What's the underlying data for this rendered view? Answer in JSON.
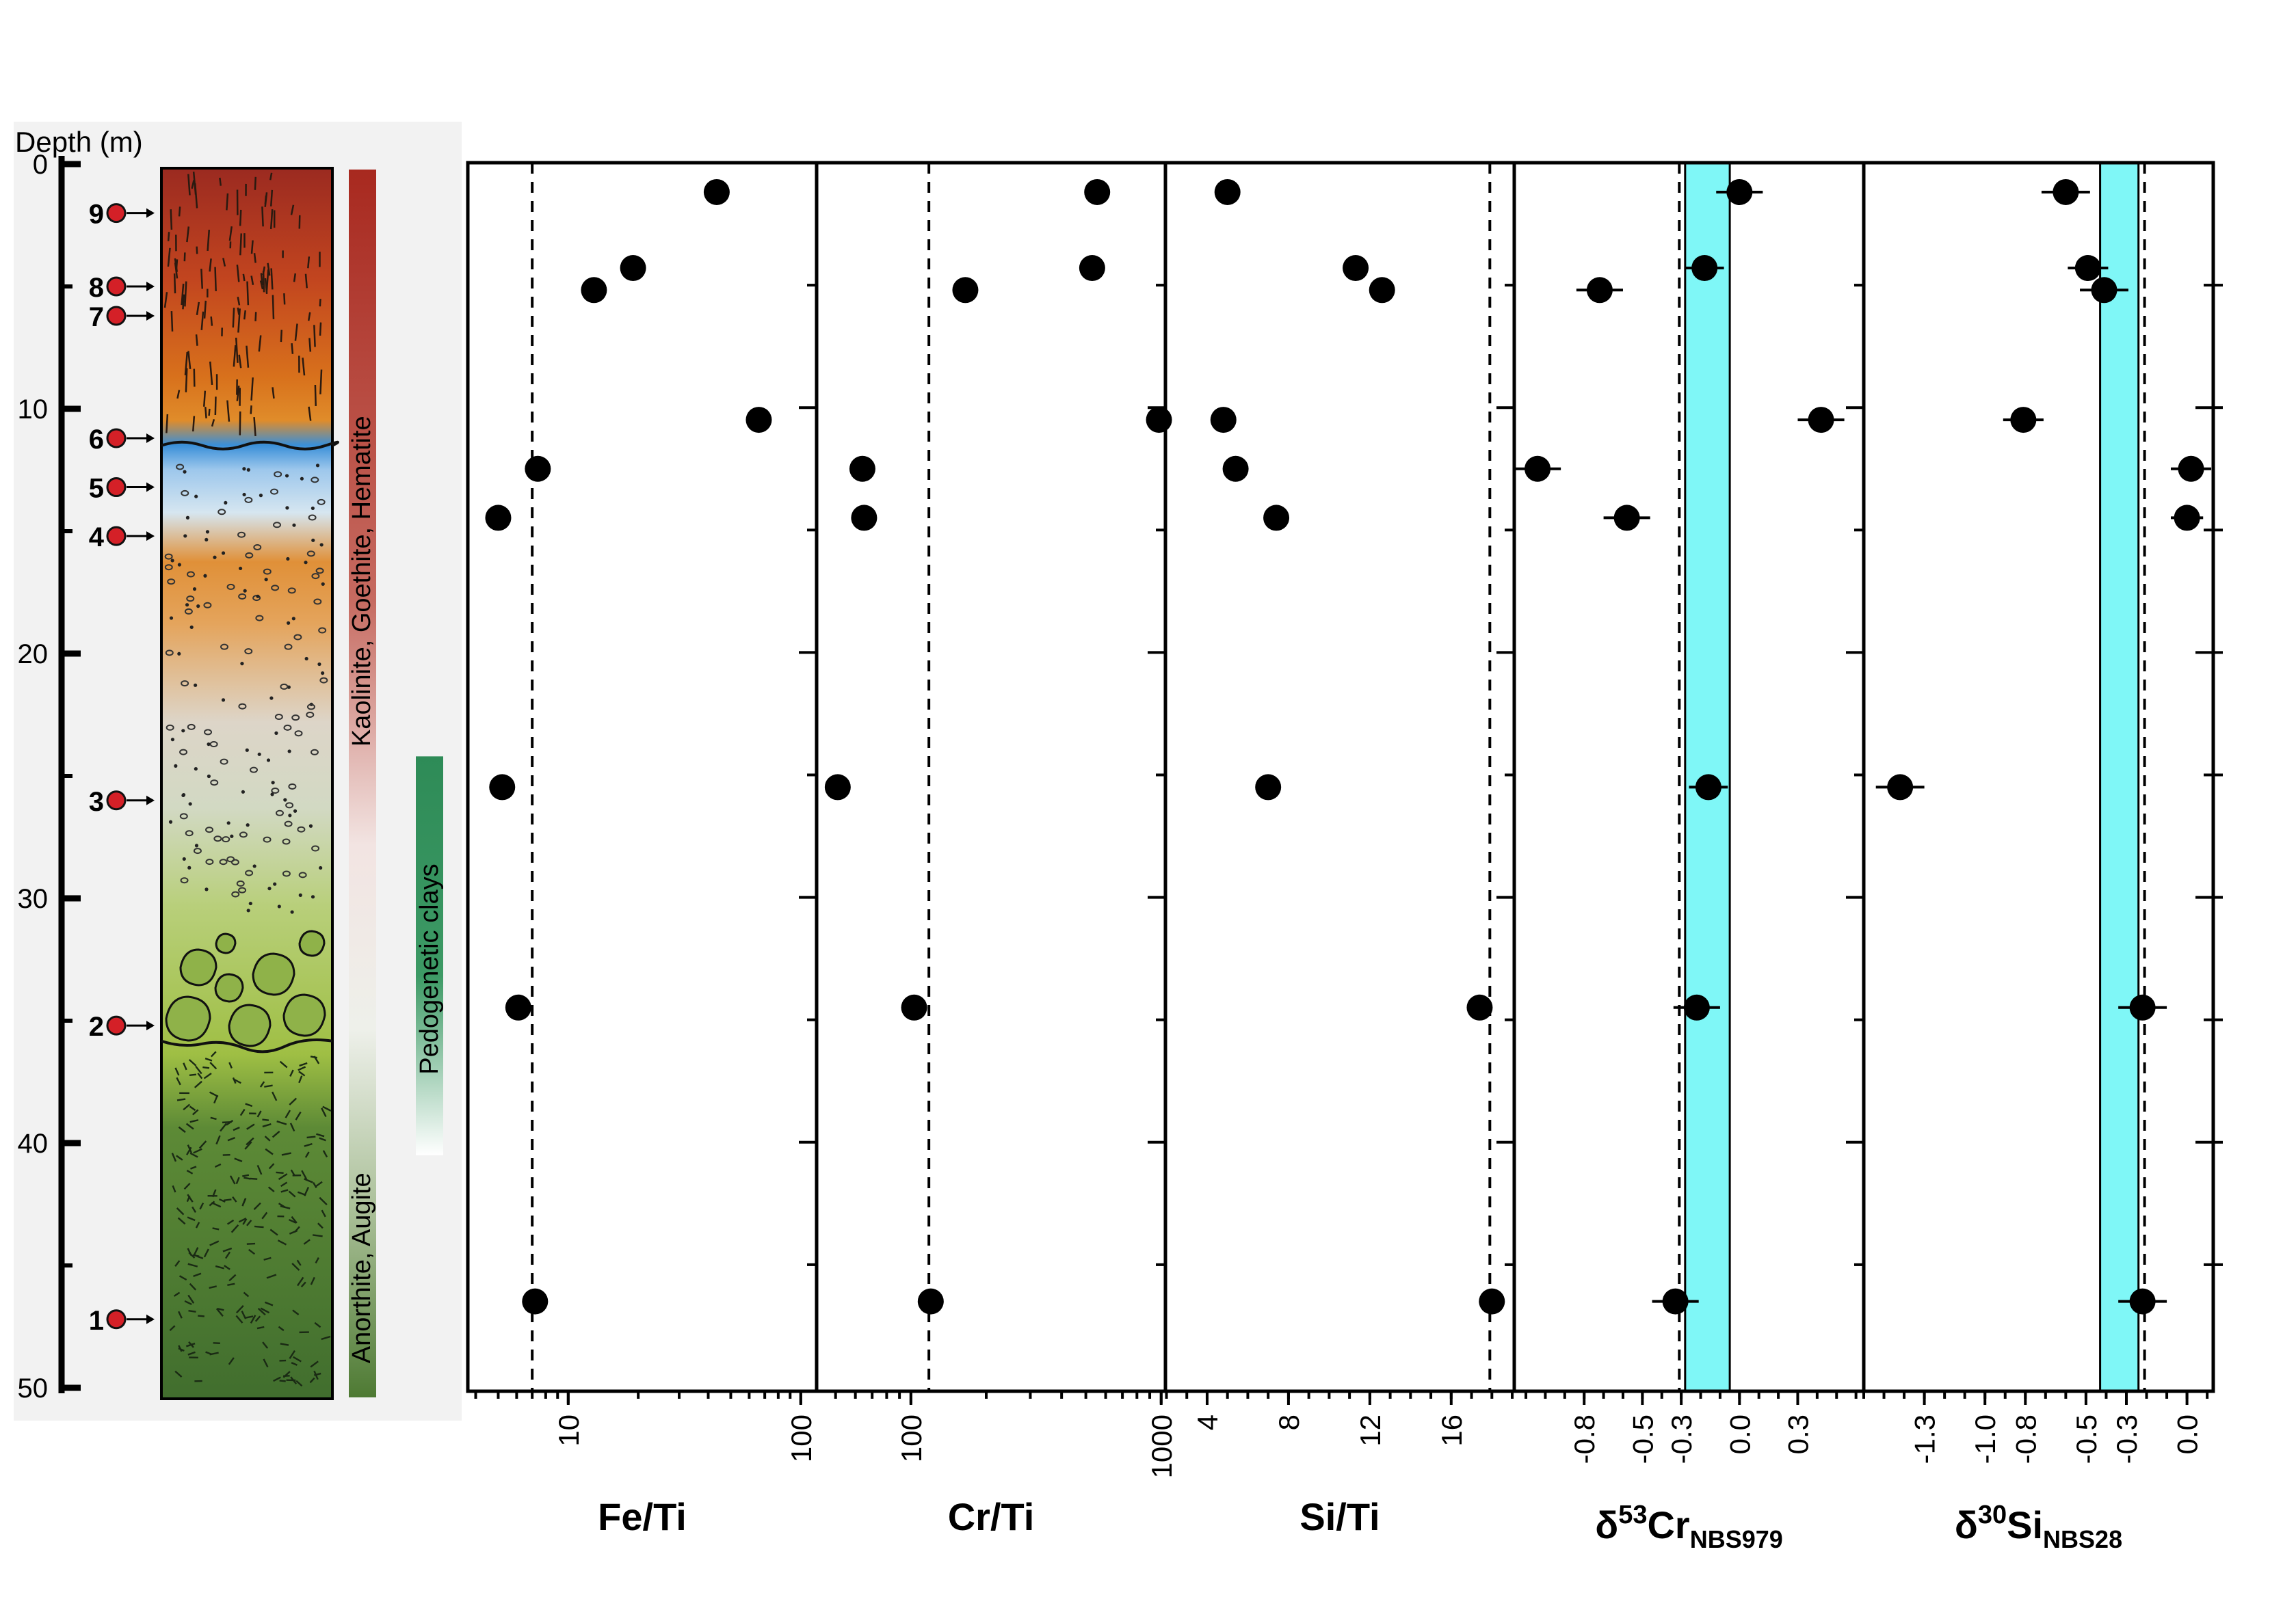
{
  "column": {
    "depth_label": "Depth (m)",
    "depth_ticks": [
      0,
      10,
      20,
      30,
      40,
      50
    ],
    "samples": [
      {
        "id": "9",
        "depth": 2
      },
      {
        "id": "8",
        "depth": 5
      },
      {
        "id": "7",
        "depth": 6.2
      },
      {
        "id": "6",
        "depth": 11.2
      },
      {
        "id": "5",
        "depth": 13.2
      },
      {
        "id": "4",
        "depth": 15.2
      },
      {
        "id": "3",
        "depth": 26
      },
      {
        "id": "2",
        "depth": 35.2
      },
      {
        "id": "1",
        "depth": 47.2
      }
    ],
    "bar_labels": {
      "upper": "Kaolinite, Goethite, Hematite",
      "lower": "Anorthite, Augite",
      "clays": "Pedogenetic clays"
    },
    "colors": {
      "top": "#9b2a20",
      "orange": "#d87a1e",
      "blue": "#3a8fd8",
      "light_blue": "#b9d9ee",
      "grey": "#dcdcd2",
      "light_green": "#a6c24a",
      "dark_green": "#3f6b2c",
      "mineral_bar_top": "#a8291f",
      "mineral_bar_bottom": "#4e7a33",
      "clay_bar": "#2e8b57"
    }
  },
  "chart_data": [
    {
      "type": "scatter",
      "xlabel": "Fe/Ti",
      "xscale": "log",
      "xlim": [
        3.7,
        117
      ],
      "xticks": [
        10,
        100
      ],
      "dashed_line": 7.0,
      "ylabel": "Depth (m)",
      "ylim": [
        0,
        50
      ],
      "points": [
        {
          "x": 43.5,
          "y": 1.2
        },
        {
          "x": 19.0,
          "y": 4.3
        },
        {
          "x": 12.9,
          "y": 5.2
        },
        {
          "x": 66.0,
          "y": 10.5
        },
        {
          "x": 7.4,
          "y": 12.5
        },
        {
          "x": 5.0,
          "y": 14.5
        },
        {
          "x": 5.2,
          "y": 25.5
        },
        {
          "x": 6.1,
          "y": 34.5
        },
        {
          "x": 7.2,
          "y": 46.5
        }
      ]
    },
    {
      "type": "scatter",
      "xlabel": "Cr/Ti",
      "xscale": "log",
      "xlim": [
        42,
        1040
      ],
      "xticks": [
        100,
        1000
      ],
      "dashed_line": 118,
      "ylabel": "Depth (m)",
      "ylim": [
        0,
        50
      ],
      "points": [
        {
          "x": 555,
          "y": 1.2
        },
        {
          "x": 530,
          "y": 4.3
        },
        {
          "x": 165,
          "y": 5.2
        },
        {
          "x": 980,
          "y": 10.5
        },
        {
          "x": 64,
          "y": 12.5
        },
        {
          "x": 65,
          "y": 14.5
        },
        {
          "x": 51,
          "y": 25.5
        },
        {
          "x": 103,
          "y": 34.5
        },
        {
          "x": 120,
          "y": 46.5
        }
      ]
    },
    {
      "type": "scatter",
      "xlabel": "Si/Ti",
      "xscale": "linear",
      "xlim": [
        1.95,
        19.1
      ],
      "xticks": [
        4,
        8,
        12,
        16
      ],
      "dashed_line": 17.9,
      "ylabel": "Depth (m)",
      "ylim": [
        0,
        50
      ],
      "points": [
        {
          "x": 5.0,
          "y": 1.2
        },
        {
          "x": 11.3,
          "y": 4.3
        },
        {
          "x": 12.6,
          "y": 5.2
        },
        {
          "x": 4.8,
          "y": 10.5
        },
        {
          "x": 5.4,
          "y": 12.5
        },
        {
          "x": 7.4,
          "y": 14.5
        },
        {
          "x": 7.0,
          "y": 25.5
        },
        {
          "x": 17.4,
          "y": 34.5
        },
        {
          "x": 18.0,
          "y": 46.5
        }
      ]
    },
    {
      "type": "scatter",
      "xlabel_main": "δ",
      "xlabel_sup": "53",
      "xlabel_el": "Cr",
      "xlabel_sub": "NBS979",
      "xscale": "linear",
      "xlim": [
        -1.16,
        0.64
      ],
      "xticks": [
        -0.8,
        -0.5,
        -0.3,
        0.0,
        0.3
      ],
      "xtick_labels": [
        "-0.8",
        "-0.5",
        "-0.3",
        "0.0",
        "0.3"
      ],
      "dashed_line": -0.31,
      "band": [
        -0.28,
        -0.05
      ],
      "band_color": "#7ff7f7",
      "ylabel": "Depth (m)",
      "ylim": [
        0,
        50
      ],
      "points": [
        {
          "x": 0.0,
          "y": 1.2,
          "err": 0.12
        },
        {
          "x": -0.18,
          "y": 4.3,
          "err": 0.1
        },
        {
          "x": -0.72,
          "y": 5.2,
          "err": 0.12
        },
        {
          "x": 0.42,
          "y": 10.5,
          "err": 0.12
        },
        {
          "x": -1.04,
          "y": 12.5,
          "err": 0.12
        },
        {
          "x": -0.58,
          "y": 14.5,
          "err": 0.12
        },
        {
          "x": -0.16,
          "y": 25.5,
          "err": 0.1
        },
        {
          "x": -0.22,
          "y": 34.5,
          "err": 0.12
        },
        {
          "x": -0.33,
          "y": 46.5,
          "err": 0.12
        }
      ]
    },
    {
      "type": "scatter",
      "xlabel_main": "δ",
      "xlabel_sup": "30",
      "xlabel_el": "Si",
      "xlabel_sub": "NBS28",
      "xscale": "linear",
      "xlim": [
        -1.6,
        0.13
      ],
      "xticks": [
        -1.3,
        -1.0,
        -0.8,
        -0.5,
        -0.3,
        0.0
      ],
      "xtick_labels": [
        "-1.3",
        "-1.0",
        "-0.8",
        "-0.5",
        "-0.3",
        "0.0"
      ],
      "dashed_line": -0.21,
      "band": [
        -0.43,
        -0.24
      ],
      "band_color": "#7ff7f7",
      "ylabel": "Depth (m)",
      "ylim": [
        0,
        50
      ],
      "points": [
        {
          "x": -0.6,
          "y": 1.2,
          "err": 0.12
        },
        {
          "x": -0.49,
          "y": 4.3,
          "err": 0.1
        },
        {
          "x": -0.41,
          "y": 5.2,
          "err": 0.12
        },
        {
          "x": -0.81,
          "y": 10.5,
          "err": 0.1
        },
        {
          "x": 0.02,
          "y": 12.5,
          "err": 0.1
        },
        {
          "x": 0.0,
          "y": 14.5,
          "err": 0.08
        },
        {
          "x": -1.42,
          "y": 25.5,
          "err": 0.12
        },
        {
          "x": -0.22,
          "y": 34.5,
          "err": 0.12
        },
        {
          "x": -0.22,
          "y": 46.5,
          "err": 0.12
        }
      ]
    }
  ]
}
